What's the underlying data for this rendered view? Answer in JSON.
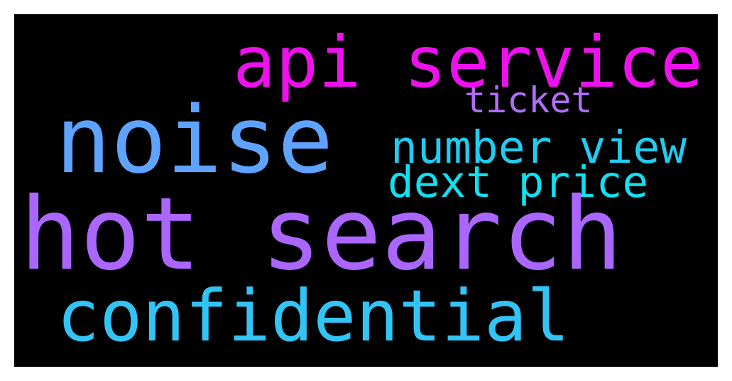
{
  "wordcloud": {
    "background": "#000000",
    "words": {
      "api_service": {
        "text": "api service",
        "color": "#ee11ee"
      },
      "ticket": {
        "text": "ticket",
        "color": "#b06ef5"
      },
      "noise": {
        "text": "noise",
        "color": "#5ea3ff"
      },
      "number_view": {
        "text": "number view",
        "color": "#22ccf0"
      },
      "dext_price": {
        "text": "dext price",
        "color": "#10e0f0"
      },
      "hot_search": {
        "text": "hot search",
        "color": "#aa66ff"
      },
      "confidential": {
        "text": "confidential",
        "color": "#33c4f6"
      }
    }
  }
}
